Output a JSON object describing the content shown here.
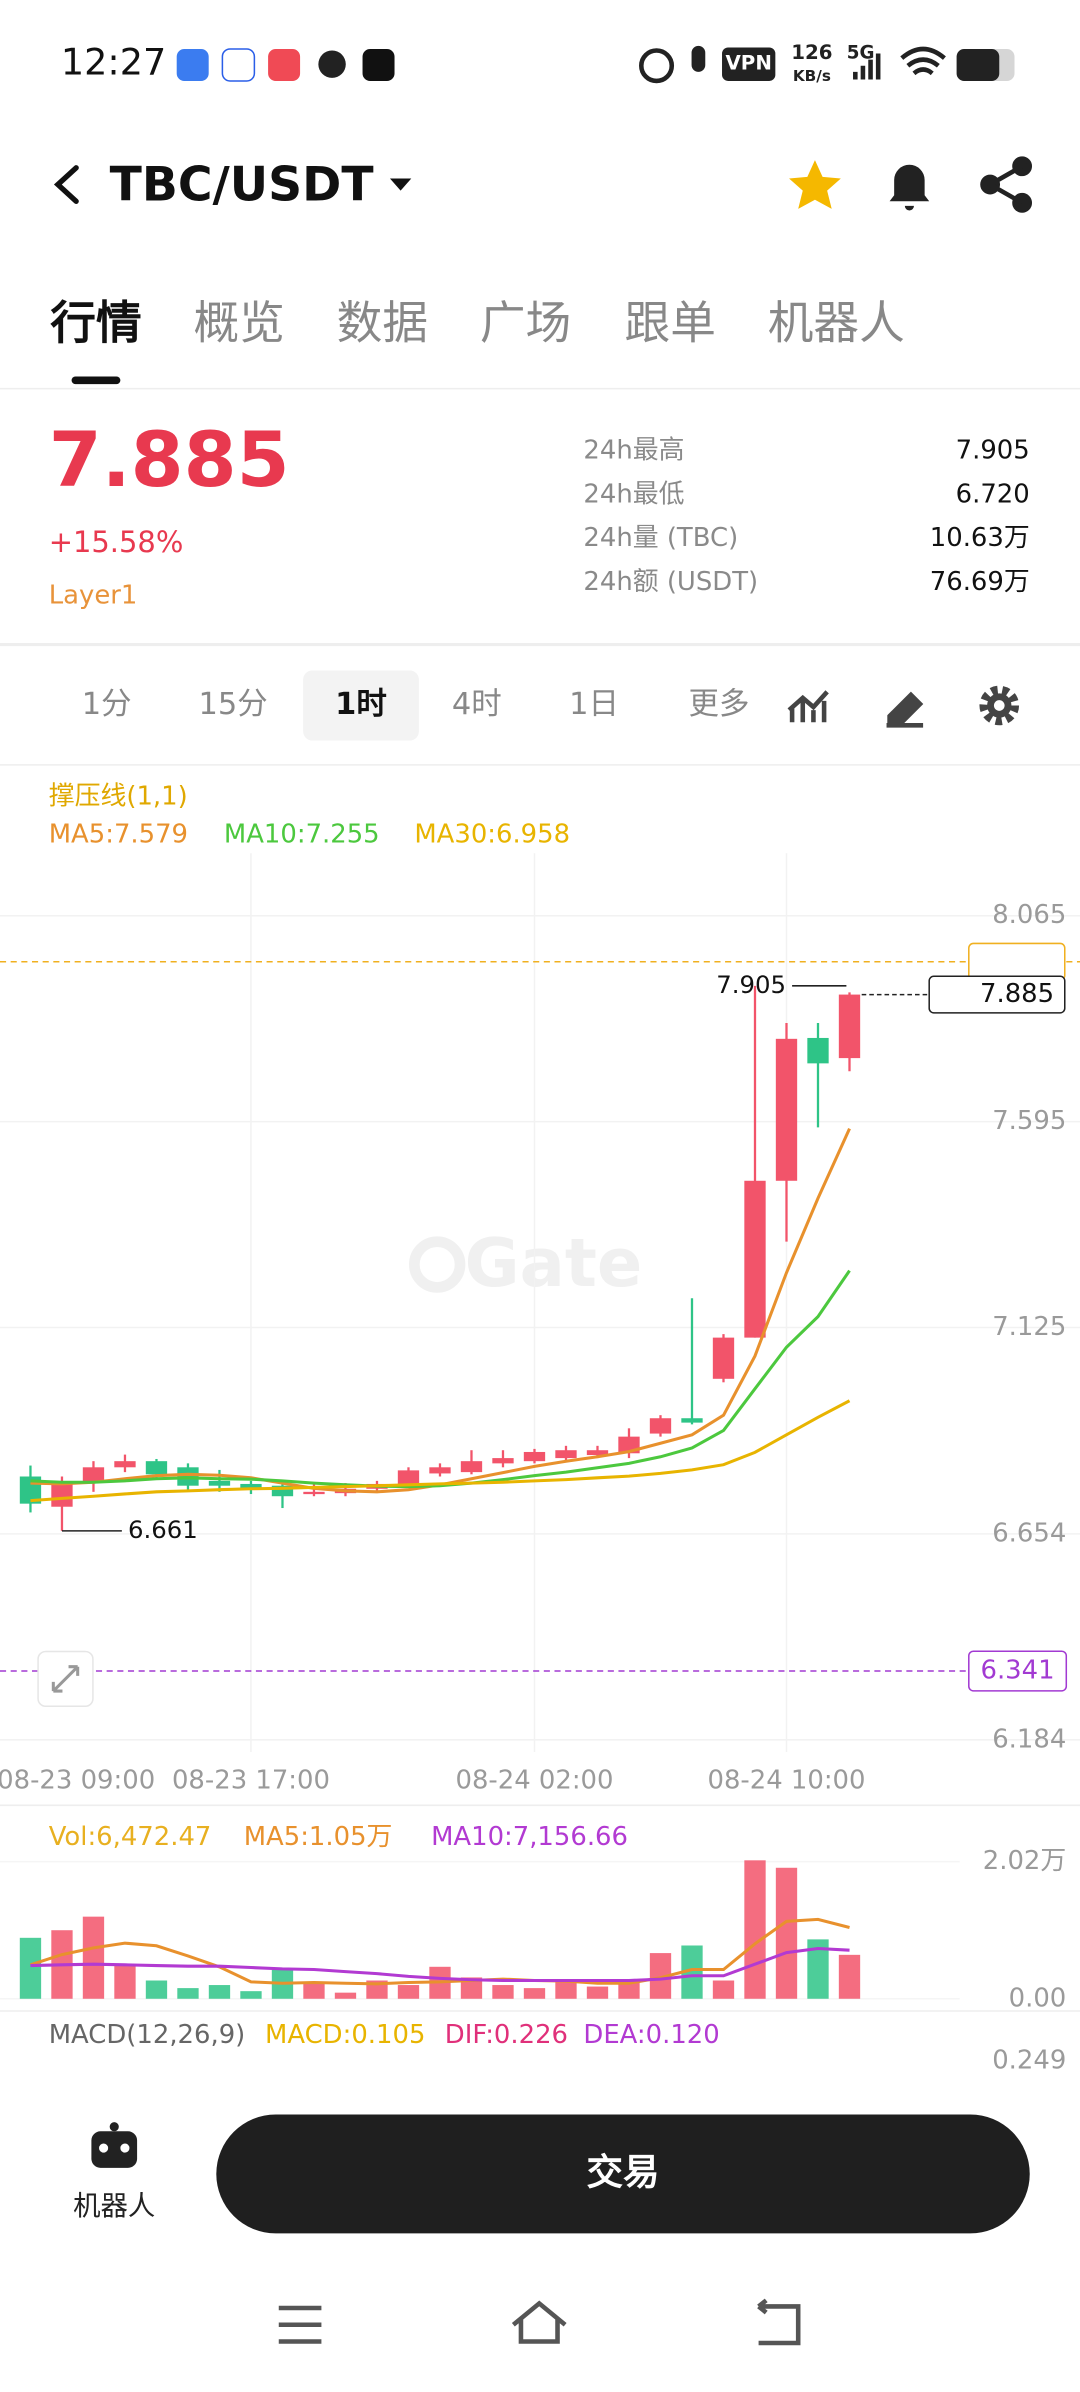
{
  "status_bar": {
    "time": "12:27",
    "vpn": "VPN",
    "speed": "126",
    "speed_unit": "KB/s",
    "network": "5G"
  },
  "header": {
    "pair": "TBC/USDT"
  },
  "tabs": [
    "行情",
    "概览",
    "数据",
    "广场",
    "跟单",
    "机器人"
  ],
  "ticker": {
    "price": "7.885",
    "change": "+15.58%",
    "tag": "Layer1",
    "stats": [
      [
        "24h最高",
        "7.905"
      ],
      [
        "24h最低",
        "6.720"
      ],
      [
        "24h量 (TBC)",
        "10.63万"
      ],
      [
        "24h额 (USDT)",
        "76.69万"
      ]
    ]
  },
  "intervals": [
    "1分",
    "15分",
    "1时",
    "4时",
    "1日",
    "更多"
  ],
  "overlay_label": "撑压线(1,1)",
  "watermark": "Gate",
  "chart_data": [
    {
      "type": "candlestick",
      "ylim": [
        6.184,
        8.065
      ],
      "yticks": [
        8.065,
        7.595,
        7.125,
        6.654,
        6.184
      ],
      "xticks": [
        {
          "value": -1,
          "label": "08-23 09:00"
        },
        {
          "value": 7,
          "label": "08-23 17:00"
        },
        {
          "value": 16,
          "label": "08-24 02:00"
        },
        {
          "value": 24,
          "label": "08-24 10:00"
        }
      ],
      "up_color": "#f2546a",
      "down_color": "#2ec487",
      "open": [
        6.785,
        6.716,
        6.771,
        6.806,
        6.82,
        6.806,
        6.775,
        6.768,
        6.764,
        6.745,
        6.747,
        6.757,
        6.768,
        6.792,
        6.795,
        6.815,
        6.82,
        6.827,
        6.834,
        6.838,
        6.883,
        6.918,
        7.008,
        7.102,
        7.46,
        7.786,
        7.74
      ],
      "close": [
        6.723,
        6.771,
        6.806,
        6.82,
        6.79,
        6.764,
        6.764,
        6.757,
        6.74,
        6.75,
        6.757,
        6.768,
        6.799,
        6.806,
        6.82,
        6.827,
        6.841,
        6.845,
        6.845,
        6.876,
        6.918,
        6.908,
        7.102,
        7.46,
        7.784,
        7.728,
        7.885
      ],
      "high": [
        6.81,
        6.785,
        6.82,
        6.835,
        6.825,
        6.815,
        6.8,
        6.775,
        6.775,
        6.77,
        6.77,
        6.775,
        6.806,
        6.815,
        6.845,
        6.845,
        6.848,
        6.855,
        6.855,
        6.895,
        6.925,
        7.192,
        7.11,
        7.905,
        7.82,
        7.82,
        7.89
      ],
      "low": [
        6.703,
        6.661,
        6.75,
        6.795,
        6.78,
        6.75,
        6.75,
        6.745,
        6.713,
        6.74,
        6.74,
        6.75,
        6.76,
        6.785,
        6.79,
        6.806,
        6.815,
        6.82,
        6.827,
        6.827,
        6.876,
        6.904,
        7.0,
        7.102,
        7.321,
        7.582,
        7.71
      ],
      "series": [
        {
          "name": "MA5:7.579",
          "color": "#e8912d",
          "values": [
            6.77,
            6.768,
            6.772,
            6.78,
            6.787,
            6.79,
            6.788,
            6.782,
            6.77,
            6.758,
            6.752,
            6.75,
            6.755,
            6.766,
            6.78,
            6.794,
            6.808,
            6.82,
            6.83,
            6.842,
            6.861,
            6.88,
            6.925,
            7.06,
            7.25,
            7.42,
            7.579
          ]
        },
        {
          "name": "MA10:7.255",
          "color": "#4cc83e",
          "values": [
            6.775,
            6.772,
            6.772,
            6.775,
            6.78,
            6.782,
            6.78,
            6.779,
            6.775,
            6.77,
            6.766,
            6.763,
            6.762,
            6.764,
            6.77,
            6.778,
            6.787,
            6.795,
            6.805,
            6.815,
            6.83,
            6.85,
            6.89,
            6.985,
            7.08,
            7.15,
            7.255
          ]
        },
        {
          "name": "MA30:6.958",
          "color": "#e8b400",
          "values": [
            6.73,
            6.735,
            6.74,
            6.745,
            6.75,
            6.752,
            6.755,
            6.757,
            6.758,
            6.76,
            6.762,
            6.764,
            6.766,
            6.768,
            6.77,
            6.772,
            6.775,
            6.778,
            6.782,
            6.786,
            6.792,
            6.8,
            6.812,
            6.84,
            6.88,
            6.92,
            6.958
          ]
        }
      ],
      "high_marker": 7.905,
      "low_marker": 6.661,
      "last_price": 7.885,
      "support": 6.341,
      "resistance": 7.96
    },
    {
      "type": "bar",
      "ylim": [
        0,
        20200
      ],
      "yticks": [
        {
          "value": 20200,
          "label": "2.02万"
        },
        {
          "value": 0,
          "label": "0.00"
        }
      ],
      "series": [
        {
          "name": "Vol:6,472.47",
          "color": "#e8b020",
          "values": [
            8980,
            10100,
            12100,
            4940,
            2690,
            1570,
            2020,
            1120,
            4260,
            2240,
            900,
            2690,
            2020,
            4710,
            3140,
            2020,
            1570,
            2690,
            1800,
            2690,
            6730,
            7850,
            2690,
            20400,
            19300,
            8750,
            6472
          ]
        },
        {
          "name": "MA5:1.05万",
          "color": "#e8912d",
          "values": [
            5000,
            6500,
            7500,
            8200,
            7800,
            6300,
            4700,
            2500,
            2300,
            2400,
            2300,
            2200,
            2400,
            2500,
            2700,
            2900,
            2700,
            2600,
            2300,
            2300,
            3100,
            4300,
            4300,
            8100,
            11400,
            11700,
            10500
          ]
        },
        {
          "name": "MA10:7,156.66",
          "color": "#b23ad2",
          "values": [
            4900,
            5000,
            5100,
            5000,
            4900,
            4800,
            4800,
            4600,
            4400,
            4300,
            4000,
            3700,
            3300,
            3000,
            2800,
            2700,
            2700,
            2700,
            2700,
            2700,
            2900,
            3400,
            3400,
            5100,
            6800,
            7400,
            7157
          ]
        }
      ]
    },
    {
      "type": "macd",
      "title": "MACD(12,26,9)",
      "yticks": [
        0.249
      ],
      "legend": [
        {
          "name": "MACD:0.105",
          "color": "#e8b400"
        },
        {
          "name": "DIF:0.226",
          "color": "#e0307a"
        },
        {
          "name": "DEA:0.120",
          "color": "#b23ad2"
        }
      ]
    }
  ],
  "bottom_bar": {
    "robot": "机器人",
    "trade": "交易"
  }
}
